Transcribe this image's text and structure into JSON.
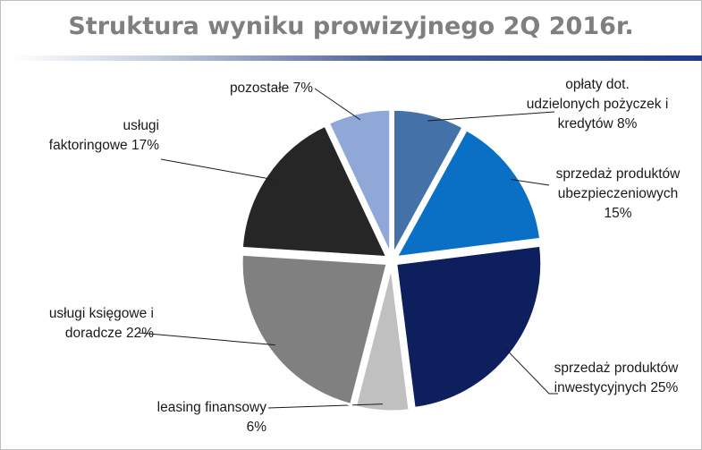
{
  "chart_data": {
    "type": "pie",
    "title": "Struktura wyniku prowizyjnego 2Q 2016r.",
    "slices": [
      {
        "label": "opłaty dot. udzielonych pożyczek i kredytów",
        "value": 8,
        "display": "opłaty dot.\nudzielonych pożyczek i\nkredytów 8%",
        "color": "#4472a8"
      },
      {
        "label": "sprzedaż produktów ubezpieczeniowych",
        "value": 15,
        "display": "sprzedaż produktów\nubezpieczeniowych\n15%",
        "color": "#0a70c6"
      },
      {
        "label": "sprzedaż produktów inwestycyjnych",
        "value": 25,
        "display": "sprzedaż produktów\ninwestycyjnych 25%",
        "color": "#0d1f5c"
      },
      {
        "label": "leasing finansowy",
        "value": 6,
        "display": "leasing finansowy\n6%",
        "color": "#c0c0c0"
      },
      {
        "label": "usługi księgowe i doradcze",
        "value": 22,
        "display": "usługi księgowe i\ndoradcze 22%",
        "color": "#808080"
      },
      {
        "label": "usługi faktoringowe",
        "value": 17,
        "display": "usługi\nfaktoringowe 17%",
        "color": "#262626"
      },
      {
        "label": "pozostałe",
        "value": 7,
        "display": "pozostałe 7%",
        "color": "#8fa8d8"
      }
    ]
  }
}
